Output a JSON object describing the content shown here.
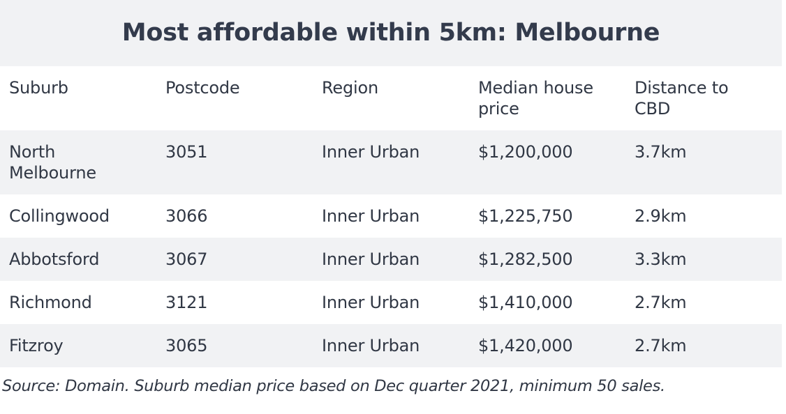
{
  "title": "Most affordable within 5km: Melbourne",
  "table": {
    "headers": [
      "Suburb",
      "Postcode",
      "Region",
      "Median house price",
      "Distance to CBD"
    ],
    "rows": [
      [
        "North Melbourne",
        "3051",
        "Inner Urban",
        "$1,200,000",
        "3.7km"
      ],
      [
        "Collingwood",
        "3066",
        "Inner Urban",
        "$1,225,750",
        "2.9km"
      ],
      [
        "Abbotsford",
        "3067",
        "Inner Urban",
        "$1,282,500",
        "3.3km"
      ],
      [
        "Richmond",
        "3121",
        "Inner Urban",
        "$1,410,000",
        "2.7km"
      ],
      [
        "Fitzroy",
        "3065",
        "Inner Urban",
        "$1,420,000",
        "2.7km"
      ]
    ]
  },
  "source": "Source: Domain. Suburb median price based on Dec quarter 2021, minimum 50 sales.",
  "colors": {
    "band": "#f1f2f4",
    "text": "#303744",
    "title": "#333b4c"
  }
}
